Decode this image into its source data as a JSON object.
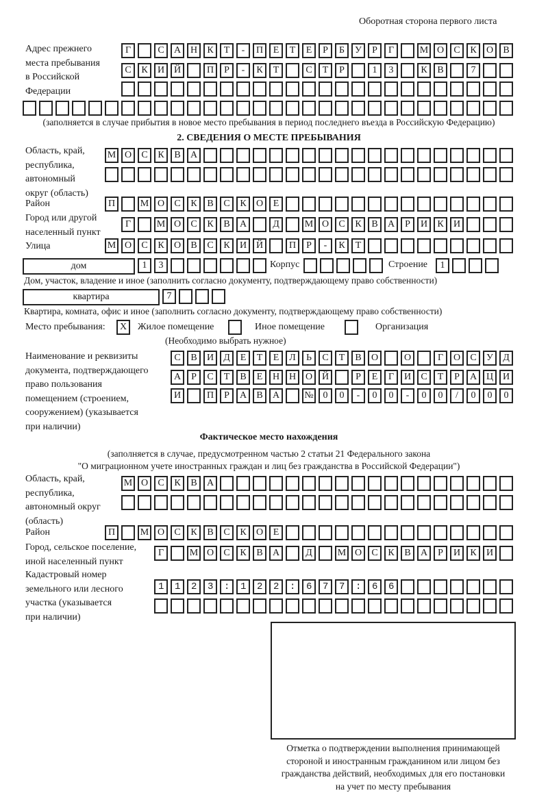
{
  "header": {
    "side_note": "Оборотная сторона первого листа"
  },
  "previous_address": {
    "label": [
      "Адрес прежнего",
      "места пребывания",
      "в Российской",
      "Федерации"
    ],
    "rows": [
      "Г САНКТ-ПЕТЕРБУРГ МОСКОВ",
      "СКИЙ ПР-КТ СТР 13 КВ 7  ",
      "",
      ""
    ],
    "note": "(заполняется в случае прибытия в новое место пребывания в период последнего въезда в Российскую Федерацию)"
  },
  "section2": {
    "title": "2. СВЕДЕНИЯ О МЕСТЕ ПРЕБЫВАНИЯ",
    "region_label": [
      "Область, край,",
      "республика,",
      "автономный",
      "округ (область)"
    ],
    "region_rows": [
      "МОСКВА",
      ""
    ],
    "district_label": "Район",
    "district_row": "П МОСКВСКОЕ",
    "city_label": [
      "Город или другой",
      "населенный пункт"
    ],
    "city_row": "Г МОСКВА Д МОСКВАРИКИ",
    "street_label": "Улица",
    "street_row": "МОСКОВСКИЙ ПР-КТ",
    "house_type": "дом",
    "house_row": "13",
    "korpus_label": "Корпус",
    "korpus_row": "",
    "building_label": "Строение",
    "building_row": "1",
    "house_note": "Дом, участок, владение и иное (заполнить согласно документу, подтверждающему право собственности)",
    "flat_type": "квартира",
    "flat_row": "7",
    "flat_note": "Квартира, комната, офис и иное (заполнить согласно документу, подтверждающему право собственности)",
    "stay_place_label": "Место пребывания:",
    "stay_options": [
      {
        "label": "Жилое помещение",
        "mark": "Х",
        "checked": true
      },
      {
        "label": "Иное помещение",
        "mark": "",
        "checked": false
      },
      {
        "label": "Организация",
        "mark": "",
        "checked": false
      }
    ],
    "stay_note": "(Необходимо выбрать нужное)",
    "doc_label": [
      "Наименование и реквизиты",
      "документа, подтверждающего",
      "право пользования",
      "помещением (строением,",
      "сооружением) (указывается",
      "при наличии)"
    ],
    "doc_rows": [
      "СВИДЕТЕЛЬСТВО О ГОСУД",
      "АРСТВЕННОЙ РЕГИСТРАЦИ",
      "И ПРАВА №00-00-00/000"
    ]
  },
  "actual": {
    "title": "Фактическое место нахождения",
    "subtitle": [
      "(заполняется в случае, предусмотренном частью 2 статьи 21 Федерального закона",
      "\"О миграционном учете иностранных граждан и лиц без гражданства в Российской Федерации\")"
    ],
    "region_label": [
      "Область, край,",
      "республика,",
      "автономный округ",
      "(область)"
    ],
    "region_rows": [
      "МОСКВА",
      ""
    ],
    "district_label": "Район",
    "district_row": "П МОСКВСКОЕ",
    "city_label": [
      "Город, сельское поселение,",
      "иной населенный пункт"
    ],
    "city_row": "Г МОСКВА Д МОСКВАРИКИ",
    "cadastre_label": [
      "Кадастровый номер",
      "земельного или лесного",
      "участка (указывается",
      "при наличии)"
    ],
    "cadastre_rows": [
      "1123:122:677:66",
      ""
    ]
  },
  "confirmation": {
    "caption": [
      "Отметка о подтверждении выполнения принимающей",
      "стороной и иностранным гражданином или лицом без",
      "гражданства действий, необходимых для его постановки",
      "на учет по месту пребывания"
    ]
  }
}
